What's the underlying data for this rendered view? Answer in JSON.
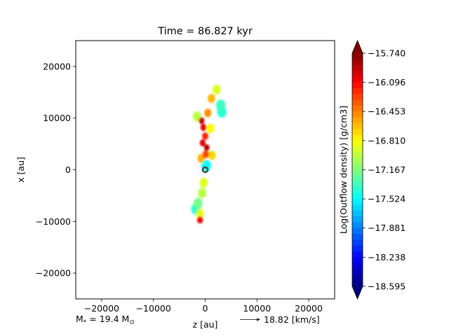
{
  "chart_data": {
    "type": "heatmap",
    "title": "Time = 86.827 kyr",
    "xlabel": "z [au]",
    "ylabel": "x [au]",
    "xlim": [
      -25000,
      25000
    ],
    "ylim": [
      -25000,
      25000
    ],
    "xticks": [
      -20000,
      -10000,
      0,
      10000,
      20000
    ],
    "xtick_labels": [
      "−20000",
      "−10000",
      "0",
      "10000",
      "20000"
    ],
    "yticks": [
      20000,
      10000,
      0,
      -10000,
      -20000
    ],
    "ytick_labels": [
      "20000",
      "10000",
      "0",
      "−10000",
      "−20000"
    ],
    "grid": false,
    "colormap": "jet",
    "colorbar": {
      "label": "Log(Outflow density) [g/cm3]",
      "range": [
        -18.595,
        -15.74
      ],
      "ticks": [
        -15.74,
        -16.096,
        -16.453,
        -16.81,
        -17.167,
        -17.524,
        -17.881,
        -18.238,
        -18.595
      ],
      "tick_labels": [
        "−15.740",
        "−16.096",
        "−16.453",
        "−16.810",
        "−17.167",
        "−17.524",
        "−17.881",
        "−18.238",
        "−18.595"
      ],
      "extend": "both"
    },
    "star_marker": {
      "z": 0,
      "x": 0,
      "symbol": "open-circle"
    },
    "annotations": {
      "mass_prefix": "M",
      "mass_sub": "*",
      "mass_value": " = 19.4 M",
      "mass_unit_sub": "⊙",
      "arrow_label": "18.82 [km/s]"
    },
    "outflow": {
      "description_free": true,
      "blobs": [
        {
          "z": -700,
          "x": 9500,
          "v": -15.95
        },
        {
          "z": -350,
          "x": 8200,
          "v": -16.05
        },
        {
          "z": 0,
          "x": 6500,
          "v": -16.2
        },
        {
          "z": -500,
          "x": 5200,
          "v": -16.0
        },
        {
          "z": 300,
          "x": 4300,
          "v": -15.9
        },
        {
          "z": 100,
          "x": 3000,
          "v": -16.3
        },
        {
          "z": -800,
          "x": 2200,
          "v": -16.6
        },
        {
          "z": 1300,
          "x": 2800,
          "v": -16.7
        },
        {
          "z": 500,
          "x": 11000,
          "v": -16.5
        },
        {
          "z": 1200,
          "x": 13800,
          "v": -16.6
        },
        {
          "z": 2200,
          "x": 15500,
          "v": -16.9
        },
        {
          "z": 3000,
          "x": 12500,
          "v": -17.35
        },
        {
          "z": 3200,
          "x": 11200,
          "v": -17.4
        },
        {
          "z": -1600,
          "x": 10300,
          "v": -17.0
        },
        {
          "z": 1000,
          "x": 8000,
          "v": -16.8
        },
        {
          "z": 200,
          "x": 800,
          "v": -17.5
        },
        {
          "z": -300,
          "x": -2500,
          "v": -16.9
        },
        {
          "z": -600,
          "x": -4500,
          "v": -17.0
        },
        {
          "z": -1400,
          "x": -6500,
          "v": -17.2
        },
        {
          "z": -1000,
          "x": -8500,
          "v": -16.9
        },
        {
          "z": -1000,
          "x": -9700,
          "v": -16.1
        },
        {
          "z": -1800,
          "x": -7600,
          "v": -17.4
        }
      ]
    }
  }
}
